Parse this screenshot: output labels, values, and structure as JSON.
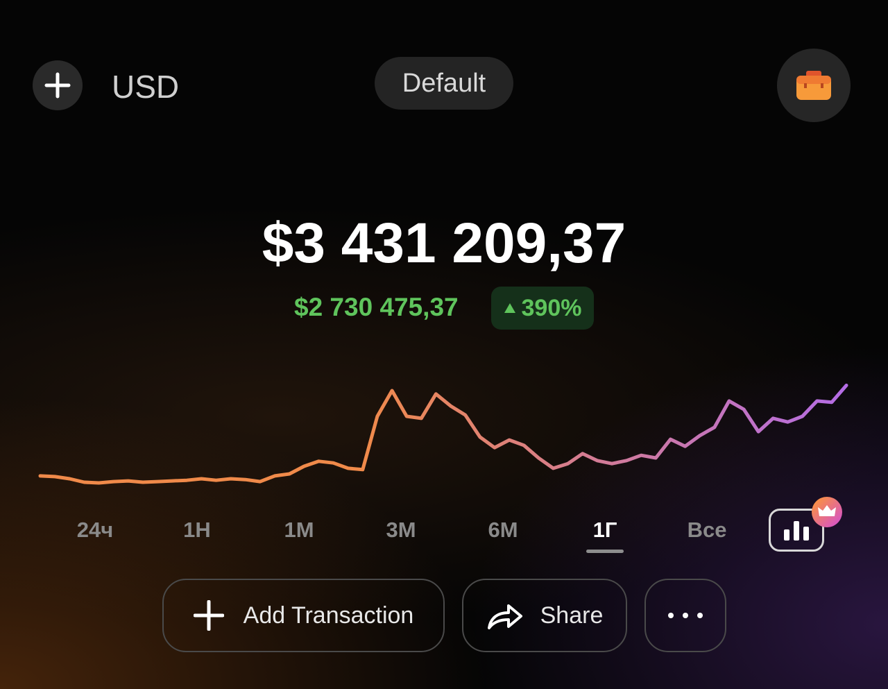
{
  "header": {
    "currency": "USD",
    "portfolio": "Default"
  },
  "balance": {
    "total": "$3 431 209,37",
    "change": "$2 730 475,37",
    "change_percent": "390%"
  },
  "chart_data": {
    "type": "line",
    "values": [
      710000,
      690000,
      625000,
      520000,
      500000,
      540000,
      560000,
      520000,
      540000,
      560000,
      580000,
      625000,
      580000,
      625000,
      600000,
      540000,
      710000,
      770000,
      1000000,
      1150000,
      1100000,
      940000,
      900000,
      2500000,
      3270000,
      2500000,
      2440000,
      3170000,
      2810000,
      2540000,
      1880000,
      1560000,
      1790000,
      1630000,
      1250000,
      940000,
      1080000,
      1380000,
      1170000,
      1080000,
      1170000,
      1330000,
      1250000,
      1810000,
      1600000,
      1920000,
      2170000,
      2960000,
      2710000,
      2040000,
      2440000,
      2330000,
      2500000,
      2960000,
      2920000,
      3430000
    ],
    "ylim": [
      0,
      4000000
    ],
    "colors": [
      "#f08a4a",
      "#b46ce6"
    ]
  },
  "periods": {
    "items": [
      "24ч",
      "1Н",
      "1М",
      "3М",
      "6М",
      "1Г",
      "Все"
    ],
    "active": 5
  },
  "actions": {
    "add": "Add Transaction",
    "share": "Share"
  }
}
